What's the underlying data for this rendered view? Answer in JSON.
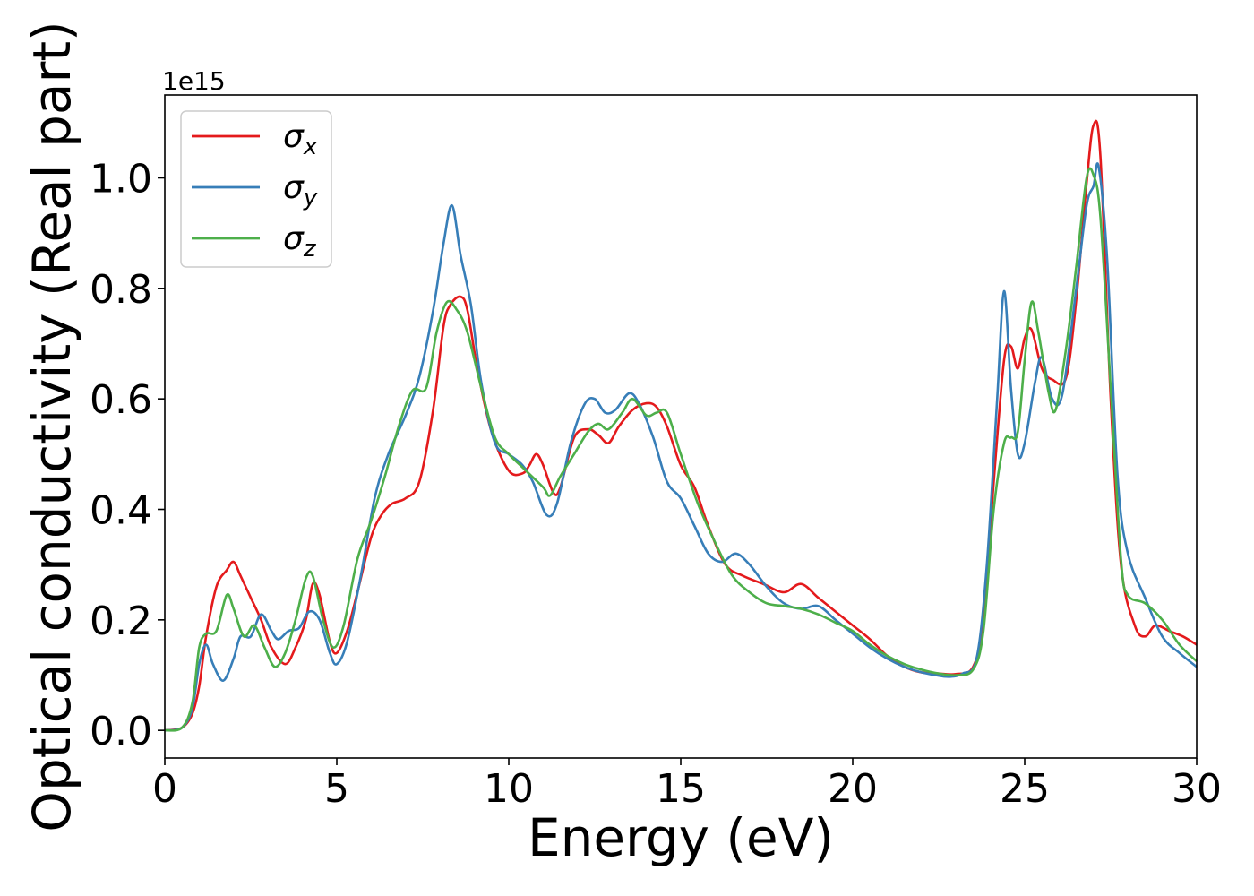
{
  "chart_data": {
    "type": "line",
    "xlabel": "Energy (eV)",
    "ylabel": "Optical conductivity (Real part)",
    "y_offset_label": "1e15",
    "xlim": [
      0,
      30
    ],
    "ylim": [
      -0.05,
      1.15
    ],
    "x_ticks": [
      0,
      5,
      10,
      15,
      20,
      25,
      30
    ],
    "x_tick_labels": [
      "0",
      "5",
      "10",
      "15",
      "20",
      "25",
      "30"
    ],
    "y_ticks": [
      0.0,
      0.2,
      0.4,
      0.6,
      0.8,
      1.0
    ],
    "y_tick_labels": [
      "0.0",
      "0.2",
      "0.4",
      "0.6",
      "0.8",
      "1.0"
    ],
    "grid": false,
    "legend_position": "top-left",
    "series": [
      {
        "name": "σx",
        "base": "σ",
        "sub": "x",
        "color": "#e41a1c",
        "points": [
          [
            0,
            0
          ],
          [
            0.5,
            0.005
          ],
          [
            0.8,
            0.03
          ],
          [
            1.0,
            0.08
          ],
          [
            1.2,
            0.17
          ],
          [
            1.5,
            0.26
          ],
          [
            1.8,
            0.29
          ],
          [
            2.0,
            0.305
          ],
          [
            2.2,
            0.28
          ],
          [
            2.5,
            0.24
          ],
          [
            2.8,
            0.2
          ],
          [
            3.1,
            0.15
          ],
          [
            3.5,
            0.12
          ],
          [
            3.8,
            0.15
          ],
          [
            4.1,
            0.2
          ],
          [
            4.3,
            0.265
          ],
          [
            4.5,
            0.245
          ],
          [
            4.8,
            0.16
          ],
          [
            5.0,
            0.14
          ],
          [
            5.3,
            0.18
          ],
          [
            5.6,
            0.25
          ],
          [
            6.0,
            0.35
          ],
          [
            6.3,
            0.39
          ],
          [
            6.6,
            0.41
          ],
          [
            7.0,
            0.42
          ],
          [
            7.4,
            0.45
          ],
          [
            7.8,
            0.58
          ],
          [
            8.1,
            0.73
          ],
          [
            8.3,
            0.77
          ],
          [
            8.6,
            0.785
          ],
          [
            8.8,
            0.76
          ],
          [
            9.1,
            0.65
          ],
          [
            9.5,
            0.54
          ],
          [
            10.0,
            0.47
          ],
          [
            10.4,
            0.465
          ],
          [
            10.6,
            0.48
          ],
          [
            10.8,
            0.5
          ],
          [
            11.0,
            0.48
          ],
          [
            11.3,
            0.43
          ],
          [
            11.5,
            0.44
          ],
          [
            11.9,
            0.53
          ],
          [
            12.3,
            0.545
          ],
          [
            12.6,
            0.535
          ],
          [
            12.9,
            0.52
          ],
          [
            13.2,
            0.55
          ],
          [
            13.6,
            0.58
          ],
          [
            14.0,
            0.592
          ],
          [
            14.3,
            0.585
          ],
          [
            14.6,
            0.55
          ],
          [
            15.0,
            0.48
          ],
          [
            15.4,
            0.44
          ],
          [
            15.8,
            0.37
          ],
          [
            16.3,
            0.3
          ],
          [
            16.8,
            0.28
          ],
          [
            17.4,
            0.265
          ],
          [
            18.0,
            0.25
          ],
          [
            18.5,
            0.265
          ],
          [
            19.0,
            0.24
          ],
          [
            19.5,
            0.215
          ],
          [
            20.0,
            0.19
          ],
          [
            20.5,
            0.165
          ],
          [
            21.0,
            0.135
          ],
          [
            21.5,
            0.115
          ],
          [
            22.0,
            0.105
          ],
          [
            22.5,
            0.103
          ],
          [
            23.0,
            0.102
          ],
          [
            23.5,
            0.115
          ],
          [
            23.8,
            0.2
          ],
          [
            24.1,
            0.45
          ],
          [
            24.4,
            0.67
          ],
          [
            24.6,
            0.695
          ],
          [
            24.8,
            0.655
          ],
          [
            25.0,
            0.71
          ],
          [
            25.2,
            0.725
          ],
          [
            25.5,
            0.655
          ],
          [
            25.8,
            0.635
          ],
          [
            26.2,
            0.638
          ],
          [
            26.5,
            0.78
          ],
          [
            26.8,
            0.99
          ],
          [
            27.0,
            1.095
          ],
          [
            27.2,
            1.04
          ],
          [
            27.5,
            0.6
          ],
          [
            27.8,
            0.3
          ],
          [
            28.2,
            0.19
          ],
          [
            28.5,
            0.17
          ],
          [
            28.8,
            0.19
          ],
          [
            29.2,
            0.18
          ],
          [
            29.6,
            0.17
          ],
          [
            30.0,
            0.155
          ]
        ]
      },
      {
        "name": "σy",
        "base": "σ",
        "sub": "y",
        "color": "#377eb8",
        "points": [
          [
            0,
            0
          ],
          [
            0.5,
            0.005
          ],
          [
            0.8,
            0.04
          ],
          [
            1.0,
            0.12
          ],
          [
            1.2,
            0.155
          ],
          [
            1.4,
            0.12
          ],
          [
            1.7,
            0.09
          ],
          [
            2.0,
            0.13
          ],
          [
            2.2,
            0.17
          ],
          [
            2.5,
            0.17
          ],
          [
            2.8,
            0.21
          ],
          [
            3.1,
            0.18
          ],
          [
            3.3,
            0.165
          ],
          [
            3.6,
            0.18
          ],
          [
            3.9,
            0.185
          ],
          [
            4.2,
            0.215
          ],
          [
            4.5,
            0.2
          ],
          [
            4.8,
            0.14
          ],
          [
            5.0,
            0.12
          ],
          [
            5.3,
            0.16
          ],
          [
            5.7,
            0.28
          ],
          [
            6.1,
            0.42
          ],
          [
            6.5,
            0.5
          ],
          [
            7.0,
            0.57
          ],
          [
            7.4,
            0.64
          ],
          [
            7.8,
            0.76
          ],
          [
            8.1,
            0.88
          ],
          [
            8.35,
            0.95
          ],
          [
            8.6,
            0.86
          ],
          [
            8.9,
            0.77
          ],
          [
            9.2,
            0.63
          ],
          [
            9.6,
            0.52
          ],
          [
            10.0,
            0.5
          ],
          [
            10.4,
            0.48
          ],
          [
            10.7,
            0.45
          ],
          [
            11.1,
            0.39
          ],
          [
            11.4,
            0.41
          ],
          [
            11.8,
            0.52
          ],
          [
            12.2,
            0.59
          ],
          [
            12.5,
            0.6
          ],
          [
            12.8,
            0.575
          ],
          [
            13.1,
            0.58
          ],
          [
            13.5,
            0.61
          ],
          [
            13.8,
            0.59
          ],
          [
            14.2,
            0.53
          ],
          [
            14.6,
            0.45
          ],
          [
            15.0,
            0.42
          ],
          [
            15.4,
            0.37
          ],
          [
            15.8,
            0.32
          ],
          [
            16.2,
            0.305
          ],
          [
            16.6,
            0.32
          ],
          [
            17.0,
            0.3
          ],
          [
            17.5,
            0.26
          ],
          [
            18.0,
            0.23
          ],
          [
            18.5,
            0.22
          ],
          [
            19.0,
            0.225
          ],
          [
            19.5,
            0.2
          ],
          [
            20.0,
            0.175
          ],
          [
            20.5,
            0.15
          ],
          [
            21.0,
            0.13
          ],
          [
            21.5,
            0.115
          ],
          [
            22.0,
            0.105
          ],
          [
            22.4,
            0.1
          ],
          [
            22.8,
            0.097
          ],
          [
            23.2,
            0.103
          ],
          [
            23.6,
            0.13
          ],
          [
            23.9,
            0.3
          ],
          [
            24.2,
            0.6
          ],
          [
            24.4,
            0.795
          ],
          [
            24.6,
            0.62
          ],
          [
            24.8,
            0.5
          ],
          [
            25.0,
            0.52
          ],
          [
            25.3,
            0.63
          ],
          [
            25.5,
            0.675
          ],
          [
            25.8,
            0.6
          ],
          [
            26.1,
            0.61
          ],
          [
            26.5,
            0.8
          ],
          [
            26.8,
            0.95
          ],
          [
            27.0,
            0.985
          ],
          [
            27.15,
            1.02
          ],
          [
            27.4,
            0.85
          ],
          [
            27.7,
            0.46
          ],
          [
            28.0,
            0.32
          ],
          [
            28.5,
            0.24
          ],
          [
            29.0,
            0.17
          ],
          [
            29.5,
            0.14
          ],
          [
            30.0,
            0.115
          ]
        ]
      },
      {
        "name": "σz",
        "base": "σ",
        "sub": "z",
        "color": "#4daf4a",
        "points": [
          [
            0,
            0
          ],
          [
            0.5,
            0.005
          ],
          [
            0.8,
            0.05
          ],
          [
            1.0,
            0.15
          ],
          [
            1.2,
            0.175
          ],
          [
            1.5,
            0.18
          ],
          [
            1.8,
            0.245
          ],
          [
            2.0,
            0.22
          ],
          [
            2.3,
            0.17
          ],
          [
            2.6,
            0.19
          ],
          [
            2.9,
            0.15
          ],
          [
            3.2,
            0.115
          ],
          [
            3.5,
            0.14
          ],
          [
            3.8,
            0.2
          ],
          [
            4.1,
            0.275
          ],
          [
            4.3,
            0.28
          ],
          [
            4.6,
            0.2
          ],
          [
            4.9,
            0.15
          ],
          [
            5.2,
            0.19
          ],
          [
            5.6,
            0.31
          ],
          [
            6.0,
            0.38
          ],
          [
            6.4,
            0.46
          ],
          [
            6.8,
            0.55
          ],
          [
            7.2,
            0.615
          ],
          [
            7.6,
            0.62
          ],
          [
            7.9,
            0.72
          ],
          [
            8.2,
            0.775
          ],
          [
            8.5,
            0.76
          ],
          [
            8.8,
            0.72
          ],
          [
            9.2,
            0.62
          ],
          [
            9.6,
            0.53
          ],
          [
            10.0,
            0.5
          ],
          [
            10.5,
            0.47
          ],
          [
            11.0,
            0.44
          ],
          [
            11.2,
            0.425
          ],
          [
            11.5,
            0.46
          ],
          [
            11.9,
            0.5
          ],
          [
            12.3,
            0.54
          ],
          [
            12.6,
            0.555
          ],
          [
            12.9,
            0.545
          ],
          [
            13.3,
            0.575
          ],
          [
            13.6,
            0.6
          ],
          [
            14.0,
            0.57
          ],
          [
            14.3,
            0.575
          ],
          [
            14.6,
            0.575
          ],
          [
            15.0,
            0.5
          ],
          [
            15.5,
            0.41
          ],
          [
            16.0,
            0.34
          ],
          [
            16.5,
            0.28
          ],
          [
            17.0,
            0.25
          ],
          [
            17.5,
            0.23
          ],
          [
            18.0,
            0.225
          ],
          [
            18.5,
            0.22
          ],
          [
            19.0,
            0.21
          ],
          [
            19.5,
            0.195
          ],
          [
            20.0,
            0.18
          ],
          [
            20.5,
            0.155
          ],
          [
            21.0,
            0.135
          ],
          [
            21.5,
            0.12
          ],
          [
            22.0,
            0.11
          ],
          [
            22.5,
            0.103
          ],
          [
            23.0,
            0.1
          ],
          [
            23.5,
            0.11
          ],
          [
            23.8,
            0.18
          ],
          [
            24.1,
            0.4
          ],
          [
            24.4,
            0.52
          ],
          [
            24.6,
            0.53
          ],
          [
            24.8,
            0.54
          ],
          [
            25.0,
            0.67
          ],
          [
            25.2,
            0.775
          ],
          [
            25.4,
            0.72
          ],
          [
            25.7,
            0.61
          ],
          [
            25.9,
            0.58
          ],
          [
            26.2,
            0.69
          ],
          [
            26.5,
            0.84
          ],
          [
            26.8,
            1.0
          ],
          [
            27.0,
            1.005
          ],
          [
            27.2,
            0.93
          ],
          [
            27.5,
            0.62
          ],
          [
            27.8,
            0.31
          ],
          [
            28.0,
            0.245
          ],
          [
            28.5,
            0.23
          ],
          [
            29.0,
            0.2
          ],
          [
            29.5,
            0.155
          ],
          [
            30.0,
            0.125
          ]
        ]
      }
    ]
  }
}
